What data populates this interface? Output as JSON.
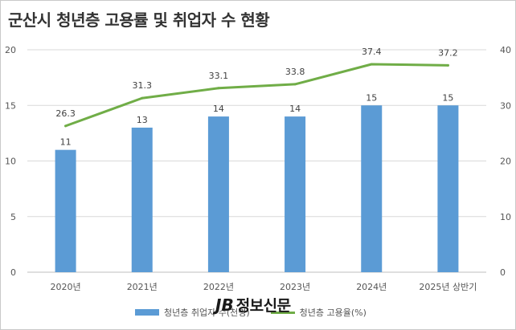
{
  "title": "군산시 청년층 고용률 및 취업자 수 현황",
  "chart_data": {
    "type": "bar",
    "categories": [
      "2020년",
      "2021년",
      "2022년",
      "2023년",
      "2024년",
      "2025년 상반기"
    ],
    "series": [
      {
        "name": "청년층 취업자 수(천명)",
        "type": "bar",
        "axis": "left",
        "values": [
          11,
          13,
          14,
          14,
          15,
          15
        ],
        "labels": [
          "11",
          "13",
          "14",
          "14",
          "15",
          "15"
        ],
        "color": "#5b9bd5"
      },
      {
        "name": "청년층 고용율(%)",
        "type": "line",
        "axis": "right",
        "values": [
          26.3,
          31.3,
          33.1,
          33.8,
          37.4,
          37.2
        ],
        "labels": [
          "26.3",
          "31.3",
          "33.1",
          "33.8",
          "37.4",
          "37.2"
        ],
        "color": "#70ad47"
      }
    ],
    "y_left": {
      "range": [
        0,
        20
      ],
      "ticks": [
        "0",
        "5",
        "10",
        "15",
        "20"
      ]
    },
    "y_right": {
      "range": [
        0,
        40
      ],
      "ticks": [
        "0",
        "10",
        "20",
        "30",
        "40"
      ]
    },
    "grid": true,
    "legend_position": "bottom"
  },
  "legend": {
    "bar_label": "청년층 취업자 수(천명)",
    "line_label": "청년층 고용율(%)"
  },
  "watermark": {
    "mark": "JB",
    "text": "정보신문"
  }
}
